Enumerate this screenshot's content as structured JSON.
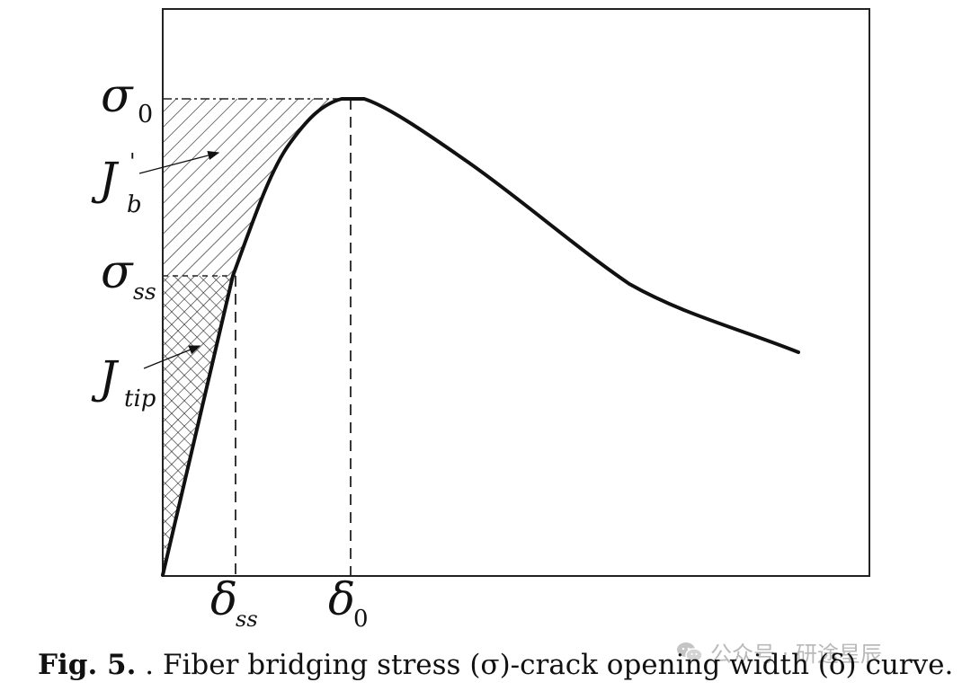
{
  "figure": {
    "y_labels": {
      "sigma0": {
        "main": "σ",
        "sub": "0"
      },
      "sigma_ss": {
        "main": "σ",
        "sub": "ss"
      }
    },
    "x_labels": {
      "delta_ss": {
        "main": "δ",
        "sub": "ss"
      },
      "delta0": {
        "main": "δ",
        "sub": "0"
      }
    },
    "region_labels": {
      "jb": {
        "main": "J",
        "sub": "b",
        "sup": "'"
      },
      "jtip": {
        "main": "J",
        "sub": "tip"
      }
    }
  },
  "caption": {
    "label": "Fig. 5.",
    "text": " . Fiber bridging stress (σ)-crack opening width (δ) curve."
  },
  "watermark": {
    "icon": "wechat-icon",
    "text": "公众号 · 研途星辰"
  }
}
